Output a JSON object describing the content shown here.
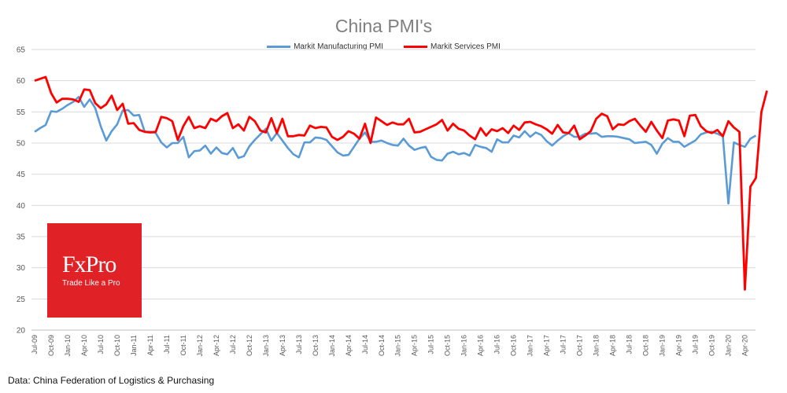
{
  "chart_data": {
    "type": "line",
    "title": "China PMI's",
    "source": "Data: China Federation of Logistics & Purchasing",
    "logo": {
      "brand": "FxPro",
      "tagline": "Trade Like a Pro",
      "color": "#e02126"
    },
    "ylim": [
      20,
      65
    ],
    "yticks": [
      20,
      25,
      30,
      35,
      40,
      45,
      50,
      55,
      60,
      65
    ],
    "grid": "horizontal",
    "legend_position": "top",
    "x_start": "Jul-09",
    "x_tick_labels": [
      "Jul-09",
      "Oct-09",
      "Jan-10",
      "Apr-10",
      "Jul-10",
      "Oct-10",
      "Jan-11",
      "Apr-11",
      "Jul-11",
      "Oct-11",
      "Jan-12",
      "Apr-12",
      "Jul-12",
      "Oct-12",
      "Jan-13",
      "Apr-13",
      "Jul-13",
      "Oct-13",
      "Jan-14",
      "Apr-14",
      "Jul-14",
      "Oct-14",
      "Jan-15",
      "Apr-15",
      "Jul-15",
      "Oct-15",
      "Jan-16",
      "Apr-16",
      "Jul-16",
      "Oct-16",
      "Jan-17",
      "Apr-17",
      "Jul-17",
      "Oct-17",
      "Jan-18",
      "Apr-18",
      "Jul-18",
      "Oct-18",
      "Jan-19",
      "Apr-19",
      "Jul-19",
      "Oct-19",
      "Jan-20",
      "Apr-20"
    ],
    "series": [
      {
        "name": "Markit Manufacturing PMI",
        "color": "#5b9bd5",
        "values": [
          51.8,
          52.4,
          52.9,
          55.1,
          55.0,
          55.5,
          56.1,
          56.6,
          57.4,
          55.8,
          57.0,
          55.6,
          52.7,
          50.4,
          51.9,
          53.0,
          55.2,
          55.3,
          54.4,
          54.5,
          51.8,
          51.8,
          51.6,
          50.1,
          49.3,
          50.0,
          50.0,
          51.0,
          47.7,
          48.7,
          48.8,
          49.6,
          48.3,
          49.3,
          48.4,
          48.2,
          49.2,
          47.6,
          47.9,
          49.5,
          50.5,
          51.4,
          52.3,
          50.4,
          51.6,
          50.4,
          49.2,
          48.2,
          47.7,
          50.1,
          50.1,
          50.9,
          50.8,
          50.5,
          49.5,
          48.5,
          48.0,
          48.1,
          49.4,
          50.7,
          51.7,
          50.2,
          50.2,
          50.4,
          50.0,
          49.7,
          49.6,
          50.7,
          49.6,
          48.9,
          49.2,
          49.4,
          47.8,
          47.3,
          47.2,
          48.3,
          48.6,
          48.2,
          48.4,
          48.0,
          49.7,
          49.4,
          49.2,
          48.6,
          50.6,
          50.1,
          50.1,
          51.2,
          50.9,
          51.9,
          51.0,
          51.7,
          51.3,
          50.3,
          49.6,
          50.4,
          51.1,
          51.6,
          51.0,
          51.0,
          51.5,
          51.5,
          51.6,
          51.0,
          51.1,
          51.1,
          51.0,
          50.8,
          50.6,
          50.0,
          50.1,
          50.2,
          49.7,
          48.3,
          49.9,
          50.8,
          50.2,
          50.2,
          49.4,
          49.9,
          50.4,
          51.4,
          51.7,
          51.8,
          51.5,
          51.1,
          40.3,
          50.1,
          49.7,
          49.4,
          50.7,
          51.2
        ]
      },
      {
        "name": "Markit Services PMI",
        "color": "#ff0000",
        "values": [
          60.0,
          60.3,
          60.6,
          58.0,
          56.5,
          57.1,
          57.1,
          57.0,
          56.6,
          58.6,
          58.5,
          56.4,
          55.6,
          56.2,
          57.6,
          55.3,
          56.3,
          53.1,
          53.2,
          52.1,
          51.8,
          51.7,
          51.8,
          54.2,
          54.0,
          53.5,
          50.5,
          52.7,
          54.2,
          52.4,
          52.7,
          52.4,
          53.9,
          53.5,
          54.3,
          54.8,
          52.4,
          53.0,
          52.0,
          54.2,
          53.5,
          52.0,
          51.7,
          54.0,
          51.6,
          53.9,
          51.1,
          51.1,
          51.3,
          51.2,
          52.8,
          52.4,
          52.6,
          52.5,
          51.0,
          50.5,
          51.0,
          51.9,
          51.5,
          50.7,
          53.1,
          50.0,
          54.1,
          53.5,
          52.9,
          53.3,
          53.0,
          53.0,
          53.9,
          51.7,
          51.8,
          52.2,
          52.6,
          53.0,
          53.7,
          52.0,
          53.1,
          52.3,
          52.0,
          51.2,
          50.6,
          52.4,
          51.2,
          52.2,
          51.9,
          52.4,
          51.6,
          52.8,
          52.1,
          53.3,
          53.4,
          53.0,
          52.7,
          52.2,
          51.5,
          52.9,
          51.7,
          51.6,
          52.8,
          50.6,
          51.2,
          51.9,
          53.9,
          54.7,
          54.3,
          52.2,
          53.0,
          52.9,
          53.5,
          53.9,
          52.8,
          51.8,
          53.4,
          52.0,
          50.8,
          53.6,
          53.8,
          53.6,
          51.1,
          54.4,
          54.5,
          52.7,
          51.9,
          51.6,
          52.1,
          51.1,
          53.5,
          52.5,
          51.8,
          26.5,
          43.0,
          44.4,
          55.0,
          58.4
        ]
      }
    ]
  }
}
